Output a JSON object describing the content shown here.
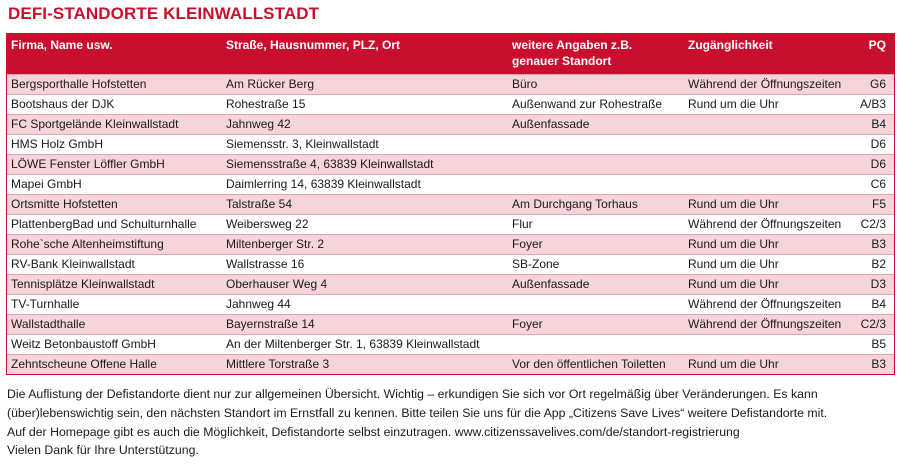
{
  "title": "DEFI-STANDORTE KLEINWALLSTADT",
  "columns": {
    "firma": "Firma, Name usw.",
    "strasse": "Straße, Hausnummer, PLZ, Ort",
    "angaben_line1": "weitere Angaben z.B.",
    "angaben_line2": "genauer Standort",
    "zugang": "Zugänglichkeit",
    "pq": "PQ"
  },
  "rows": [
    {
      "firma": "Bergsporthalle Hofstetten",
      "strasse": "Am Rücker Berg",
      "angaben": "Büro",
      "zugang": "Während der Öffnungszeiten",
      "pq": "G6"
    },
    {
      "firma": "Bootshaus der DJK",
      "strasse": "Rohestraße 15",
      "angaben": "Außenwand zur Rohestraße",
      "zugang": "Rund um die Uhr",
      "pq": "A/B3"
    },
    {
      "firma": "FC Sportgelände Kleinwallstadt",
      "strasse": "Jahnweg 42",
      "angaben": "Außenfassade",
      "zugang": "",
      "pq": "B4"
    },
    {
      "firma": "HMS Holz GmbH",
      "strasse": "Siemensstr. 3, Kleinwallstadt",
      "angaben": "",
      "zugang": "",
      "pq": "D6"
    },
    {
      "firma": "LÖWE Fenster Löffler GmbH",
      "strasse": "Siemensstraße 4, 63839 Kleinwallstadt",
      "angaben": "",
      "zugang": "",
      "pq": "D6"
    },
    {
      "firma": "Mapei GmbH",
      "strasse": "Daimlerring 14, 63839 Kleinwallstadt",
      "angaben": "",
      "zugang": "",
      "pq": "C6"
    },
    {
      "firma": "Ortsmitte Hofstetten",
      "strasse": "Talstraße 54",
      "angaben": "Am Durchgang Torhaus",
      "zugang": "Rund um die Uhr",
      "pq": "F5"
    },
    {
      "firma": "PlattenbergBad und Schulturnhalle",
      "strasse": "Weibersweg 22",
      "angaben": "Flur",
      "zugang": "Während der Öffnungszeiten",
      "pq": "C2/3"
    },
    {
      "firma": "Rohe`sche Altenheimstiftung",
      "strasse": "Miltenberger Str. 2",
      "angaben": "Foyer",
      "zugang": "Rund um die Uhr",
      "pq": "B3"
    },
    {
      "firma": "RV-Bank Kleinwallstadt",
      "strasse": "Wallstrasse 16",
      "angaben": "SB-Zone",
      "zugang": "Rund um die Uhr",
      "pq": "B2"
    },
    {
      "firma": "Tennisplätze Kleinwallstadt",
      "strasse": "Oberhauser Weg 4",
      "angaben": "Außenfassade",
      "zugang": "Rund um die Uhr",
      "pq": "D3"
    },
    {
      "firma": "TV-Turnhalle",
      "strasse": "Jahnweg 44",
      "angaben": "",
      "zugang": "Während der Öffnungszeiten",
      "pq": "B4"
    },
    {
      "firma": "Wallstadthalle",
      "strasse": "Bayernstraße 14",
      "angaben": "Foyer",
      "zugang": "Während der Öffnungszeiten",
      "pq": "C2/3"
    },
    {
      "firma": "Weitz Betonbaustoff GmbH",
      "strasse": "An der Miltenberger Str. 1, 63839 Kleinwallstadt",
      "angaben": "",
      "zugang": "",
      "pq": "B5"
    },
    {
      "firma": "Zehntscheune Offene Halle",
      "strasse": "Mittlere Torstraße 3",
      "angaben": "Vor den öffentlichen Toiletten",
      "zugang": "Rund um die Uhr",
      "pq": "B3"
    }
  ],
  "footer": {
    "line1": "Die Auflistung der Defistandorte dient nur zur allgemeinen Übersicht. Wichtig – erkundigen Sie sich vor Ort regelmäßig über Veränderungen. Es kann",
    "line2": "(über)lebenswichtig sein, den nächsten Standort im Ernstfall zu kennen. Bitte teilen Sie uns für die App „Citizens Save Lives“ weitere Defistandorte mit.",
    "line3": "Auf der Homepage gibt es auch die Möglichkeit, Defistandorte selbst einzutragen. www.citizenssavelives.com/de/standort-registrierung",
    "line4": "Vielen Dank für Ihre Unterstützung."
  },
  "colors": {
    "accent": "#c8102e",
    "row_tint": "#f6d5da"
  }
}
